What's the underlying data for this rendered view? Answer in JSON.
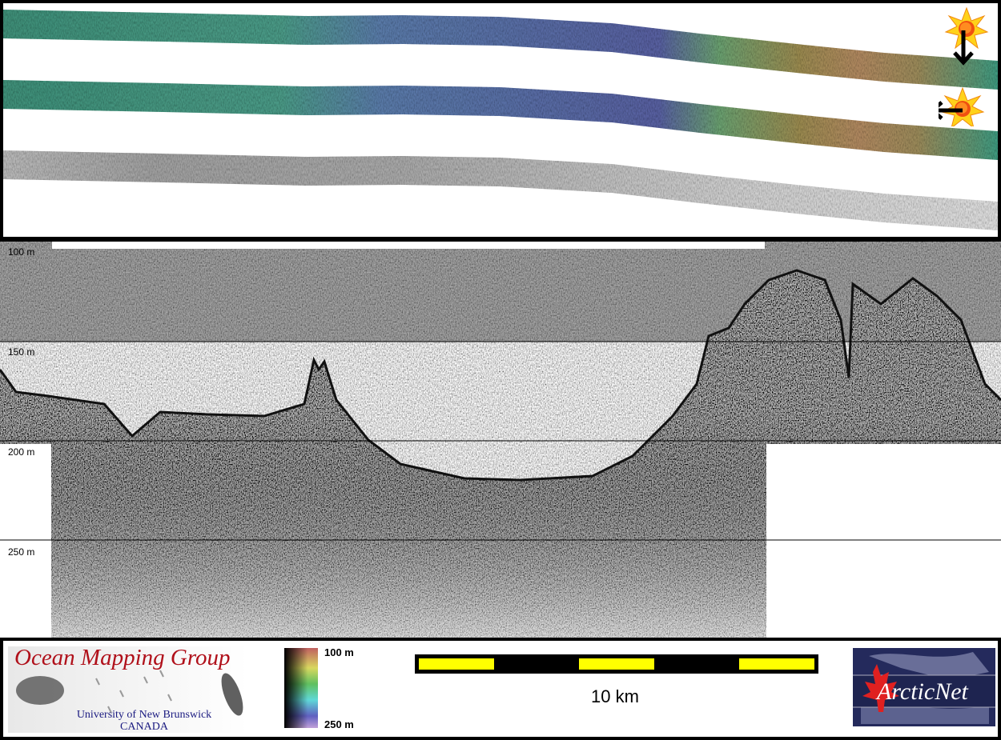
{
  "profile": {
    "depth_labels": [
      "100 m",
      "150 m",
      "200 m",
      "250 m"
    ]
  },
  "illumination": {
    "icons": [
      "sun-icon-north",
      "sun-icon-east"
    ],
    "arrows": [
      "arrow-down-icon",
      "arrow-left-icon"
    ]
  },
  "colorbar": {
    "top_label": "100 m",
    "bottom_label": "250 m",
    "colors": [
      "#c06060",
      "#d8d860",
      "#60c060",
      "#60d8d8",
      "#6060c0",
      "#c0a0d8"
    ]
  },
  "scalebar": {
    "label": "10 km",
    "colors": [
      "#000000",
      "#ffff00"
    ]
  },
  "logos": {
    "omg": {
      "title": "Ocean Mapping Group",
      "line1": "University of New Brunswick",
      "line2": "CANADA"
    },
    "arcticnet": {
      "text": "ArcticNet"
    }
  }
}
